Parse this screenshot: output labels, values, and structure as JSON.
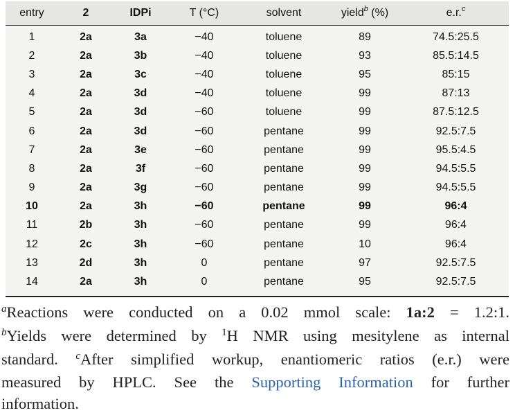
{
  "table": {
    "headers": {
      "entry": "entry",
      "compound": "2",
      "catalyst": "IDPi",
      "temp": "T (°C)",
      "solvent": "solvent",
      "yield_pre": "yield",
      "yield_sup": "b",
      "yield_post": " (%)",
      "er_pre": "e.r.",
      "er_sup": "c"
    },
    "rows": [
      {
        "entry": "1",
        "compound": "2a",
        "catalyst": "3a",
        "temp": "−40",
        "solvent": "toluene",
        "yield": "89",
        "er": "74.5:25.5"
      },
      {
        "entry": "2",
        "compound": "2a",
        "catalyst": "3b",
        "temp": "−40",
        "solvent": "toluene",
        "yield": "93",
        "er": "85.5:14.5"
      },
      {
        "entry": "3",
        "compound": "2a",
        "catalyst": "3c",
        "temp": "−40",
        "solvent": "toluene",
        "yield": "95",
        "er": "85:15"
      },
      {
        "entry": "4",
        "compound": "2a",
        "catalyst": "3d",
        "temp": "−40",
        "solvent": "toluene",
        "yield": "99",
        "er": "87:13"
      },
      {
        "entry": "5",
        "compound": "2a",
        "catalyst": "3d",
        "temp": "−60",
        "solvent": "toluene",
        "yield": "99",
        "er": "87.5:12.5"
      },
      {
        "entry": "6",
        "compound": "2a",
        "catalyst": "3d",
        "temp": "−60",
        "solvent": "pentane",
        "yield": "99",
        "er": "92.5:7.5"
      },
      {
        "entry": "7",
        "compound": "2a",
        "catalyst": "3e",
        "temp": "−60",
        "solvent": "pentane",
        "yield": "99",
        "er": "95.5:4.5"
      },
      {
        "entry": "8",
        "compound": "2a",
        "catalyst": "3f",
        "temp": "−60",
        "solvent": "pentane",
        "yield": "99",
        "er": "94.5:5.5"
      },
      {
        "entry": "9",
        "compound": "2a",
        "catalyst": "3g",
        "temp": "−60",
        "solvent": "pentane",
        "yield": "99",
        "er": "94.5:5.5"
      },
      {
        "entry": "10",
        "compound": "2a",
        "catalyst": "3h",
        "temp": "−60",
        "solvent": "pentane",
        "yield": "99",
        "er": "96:4"
      },
      {
        "entry": "11",
        "compound": "2b",
        "catalyst": "3h",
        "temp": "−60",
        "solvent": "pentane",
        "yield": "99",
        "er": "96:4"
      },
      {
        "entry": "12",
        "compound": "2c",
        "catalyst": "3h",
        "temp": "−60",
        "solvent": "pentane",
        "yield": "10",
        "er": "96:4"
      },
      {
        "entry": "13",
        "compound": "2d",
        "catalyst": "3h",
        "temp": "0",
        "solvent": "pentane",
        "yield": "97",
        "er": "92.5:7.5"
      },
      {
        "entry": "14",
        "compound": "2a",
        "catalyst": "3h",
        "temp": "0",
        "solvent": "pentane",
        "yield": "95",
        "er": "92.5:7.5"
      }
    ]
  },
  "footnotes": {
    "a_mark": "a",
    "a_text": "Reactions were conducted on a 0.02 mmol scale: ",
    "a_ratio_label": "1a:2",
    "a_ratio_value": " = 1.2:1.",
    "b_mark": "b",
    "b_text_1": "Yields were determined by ",
    "b_sup": "1",
    "b_text_2": "H NMR using mesitylene as internal",
    "b_text_3": "standard. ",
    "c_mark": "c",
    "c_text_1": "After simplified workup, enantiomeric ratios (e.r.) were",
    "c_text_2": "measured by HPLC. See the ",
    "c_link": "Supporting Information",
    "c_text_3": " for further",
    "c_text_4": "information."
  }
}
